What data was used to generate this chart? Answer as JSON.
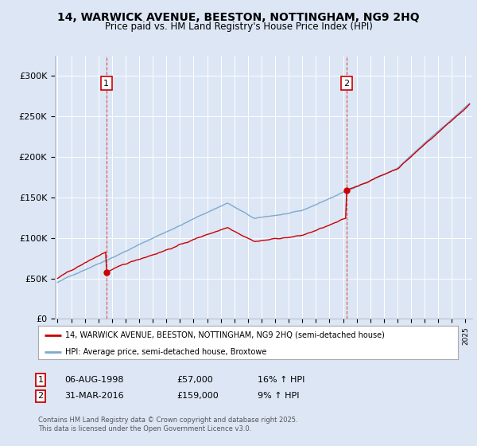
{
  "title_line1": "14, WARWICK AVENUE, BEESTON, NOTTINGHAM, NG9 2HQ",
  "title_line2": "Price paid vs. HM Land Registry's House Price Index (HPI)",
  "background_color": "#dce6f5",
  "grid_color": "#ffffff",
  "red_color": "#cc0000",
  "blue_color": "#7faacc",
  "sale1_year": 1998.59,
  "sale1_price": 57000,
  "sale1_label": "06-AUG-1998",
  "sale1_pct": "16%",
  "sale2_year": 2016.25,
  "sale2_price": 159000,
  "sale2_label": "31-MAR-2016",
  "sale2_pct": "9%",
  "legend_line1": "14, WARWICK AVENUE, BEESTON, NOTTINGHAM, NG9 2HQ (semi-detached house)",
  "legend_line2": "HPI: Average price, semi-detached house, Broxtowe",
  "footer": "Contains HM Land Registry data © Crown copyright and database right 2025.\nThis data is licensed under the Open Government Licence v3.0.",
  "ylim": [
    0,
    325000
  ],
  "xlim_start": 1994.8,
  "xlim_end": 2025.5,
  "yticks": [
    0,
    50000,
    100000,
    150000,
    200000,
    250000,
    300000
  ],
  "ylabels": [
    "£0",
    "£50K",
    "£100K",
    "£150K",
    "£200K",
    "£250K",
    "£300K"
  ]
}
